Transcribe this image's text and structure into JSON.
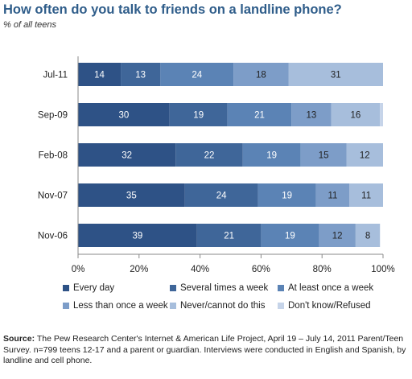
{
  "header": {
    "title": "How often do you talk to friends on a landline phone?",
    "subtitle": "% of all teens"
  },
  "chart_data": {
    "type": "bar",
    "orientation": "horizontal",
    "stacked": true,
    "categories": [
      "Jul-11",
      "Sep-09",
      "Feb-08",
      "Nov-07",
      "Nov-06"
    ],
    "series": [
      {
        "name": "Every day",
        "color": "#2e5286",
        "values": [
          14,
          30,
          32,
          35,
          39
        ]
      },
      {
        "name": "Several times a week",
        "color": "#3f6699",
        "values": [
          13,
          19,
          22,
          24,
          21
        ]
      },
      {
        "name": "At least once a week",
        "color": "#5b83b5",
        "values": [
          24,
          21,
          19,
          19,
          19
        ]
      },
      {
        "name": "Less than once a week",
        "color": "#7d9dc8",
        "values": [
          18,
          13,
          15,
          11,
          12
        ]
      },
      {
        "name": "Never/cannot do this",
        "color": "#a7bedc",
        "values": [
          31,
          16,
          12,
          11,
          8
        ]
      },
      {
        "name": "Don't know/Refused",
        "color": "#c6d4e9",
        "values": [
          0,
          1,
          0,
          0,
          0
        ]
      }
    ],
    "xlim": [
      0,
      100
    ],
    "x_ticks": [
      "0%",
      "20%",
      "40%",
      "60%",
      "80%",
      "100%"
    ],
    "grid": false,
    "legend_position": "bottom"
  },
  "source": {
    "label": "Source:",
    "text": " The Pew Research Center's Internet & American Life Project, April 19 – July 14, 2011 Parent/Teen Survey. n=799 teens 12-17 and a parent or guardian. Interviews were conducted in English and Spanish, by landline and cell phone."
  }
}
